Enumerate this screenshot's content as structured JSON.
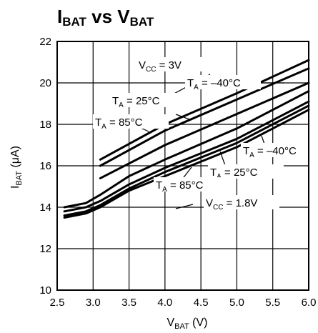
{
  "chart_data": {
    "type": "line",
    "title": {
      "main": "I",
      "sub1": "BAT",
      "mid": " vs V",
      "sub2": "BAT"
    },
    "xlabel": {
      "main": "V",
      "sub": "BAT",
      "unit": " (V)"
    },
    "ylabel": {
      "main": "I",
      "sub": "BAT",
      "unit": " (μA)"
    },
    "xlim": [
      2.5,
      6.0
    ],
    "ylim": [
      10,
      22
    ],
    "xticks": [
      "2.5",
      "3.0",
      "3.5",
      "4.0",
      "4.5",
      "5.0",
      "5.5",
      "6.0"
    ],
    "yticks": [
      "10",
      "12",
      "14",
      "16",
      "18",
      "20",
      "22"
    ],
    "grid": true,
    "line_color": "#000000",
    "series": [
      {
        "x": [
          3.1,
          4.0,
          5.0,
          6.0
        ],
        "y": [
          16.3,
          18.0,
          19.5,
          21.1
        ]
      },
      {
        "x": [
          3.1,
          4.0,
          5.0,
          6.0
        ],
        "y": [
          16.0,
          17.7,
          19.2,
          20.7
        ]
      },
      {
        "x": [
          3.1,
          4.0,
          5.0,
          6.0
        ],
        "y": [
          15.4,
          17.0,
          18.5,
          20.0
        ]
      },
      {
        "x": [
          2.6,
          2.9,
          3.1,
          3.5,
          4.0,
          5.0,
          6.0
        ],
        "y": [
          14.0,
          14.2,
          14.6,
          15.5,
          16.3,
          17.8,
          19.6
        ]
      },
      {
        "x": [
          2.6,
          2.9,
          3.1,
          3.5,
          4.0,
          5.0,
          6.0
        ],
        "y": [
          13.8,
          14.0,
          14.3,
          15.1,
          15.9,
          17.3,
          19.1
        ]
      },
      {
        "x": [
          2.6,
          2.9,
          3.1,
          3.5,
          4.0,
          5.0,
          6.0
        ],
        "y": [
          13.6,
          13.8,
          14.1,
          14.9,
          15.7,
          17.1,
          18.9
        ]
      },
      {
        "x": [
          2.6,
          2.9,
          3.1,
          3.5,
          4.0,
          5.0,
          6.0
        ],
        "y": [
          13.5,
          13.7,
          14.0,
          14.8,
          15.5,
          16.9,
          18.7
        ]
      }
    ],
    "annotations": [
      {
        "main": "V",
        "sub": "CC",
        "rest": " = 3V"
      },
      {
        "main": "T",
        "sub": "A",
        "rest": " = –40°C"
      },
      {
        "main": "T",
        "sub": "A",
        "rest": " = 25°C"
      },
      {
        "main": "T",
        "sub": "A",
        "rest": " = 85°C"
      },
      {
        "main": "T",
        "sub": "A",
        "rest": " = –40°C"
      },
      {
        "main": "T",
        "sub": "A",
        "rest": " = 25°C"
      },
      {
        "main": "T",
        "sub": "A",
        "rest": " = 85°C"
      },
      {
        "main": "V",
        "sub": "CC",
        "rest": " = 1.8V"
      }
    ]
  }
}
